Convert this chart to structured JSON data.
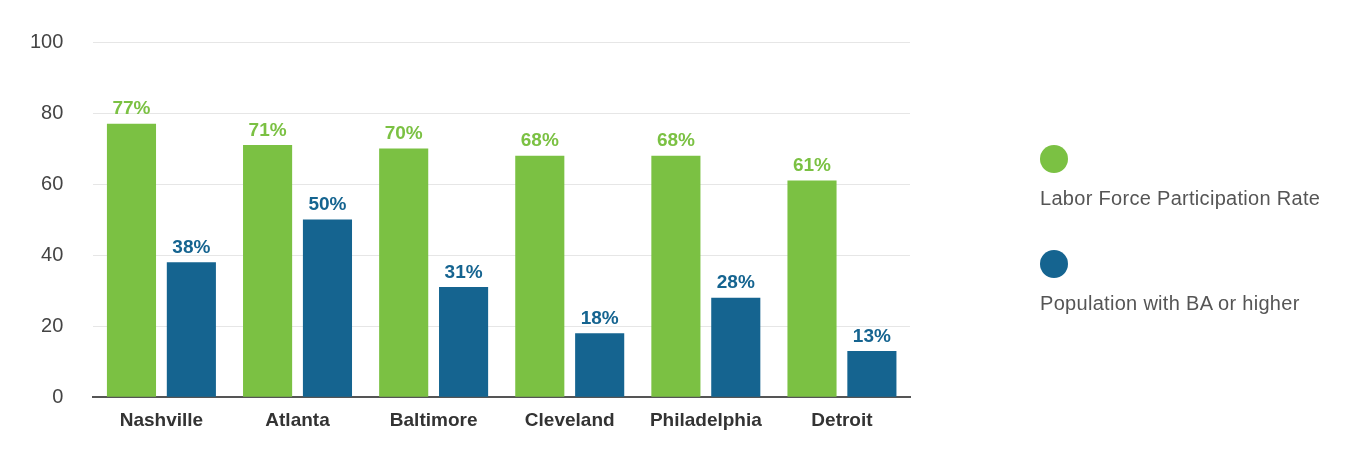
{
  "chart_data": {
    "type": "bar",
    "categories": [
      "Nashville",
      "Atlanta",
      "Baltimore",
      "Cleveland",
      "Philadelphia",
      "Detroit"
    ],
    "series": [
      {
        "name": "Labor Force Participation Rate",
        "color": "#7bc143",
        "values": [
          77,
          71,
          70,
          68,
          68,
          61
        ],
        "value_labels": [
          "77%",
          "71%",
          "70%",
          "68%",
          "68%",
          "61%"
        ]
      },
      {
        "name": "Population with BA or higher",
        "color": "#156490",
        "values": [
          38,
          50,
          31,
          18,
          28,
          13
        ],
        "value_labels": [
          "38%",
          "50%",
          "31%",
          "18%",
          "28%",
          "13%"
        ]
      }
    ],
    "ylim": [
      0,
      100
    ],
    "yticks": [
      0,
      20,
      40,
      60,
      80,
      100
    ],
    "grid": "y",
    "legend": "right"
  }
}
